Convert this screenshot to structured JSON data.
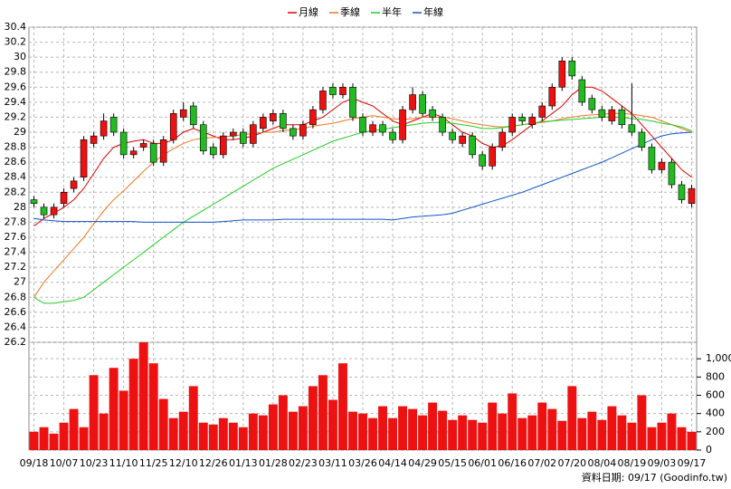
{
  "chart_data": {
    "type": "candlestick",
    "categories": [
      "09/18",
      null,
      null,
      "10/07",
      null,
      null,
      "10/23",
      null,
      null,
      "11/10",
      null,
      null,
      "11/25",
      null,
      null,
      "12/10",
      null,
      null,
      "12/26",
      null,
      null,
      "01/13",
      null,
      null,
      "01/28",
      null,
      null,
      "02/23",
      null,
      null,
      "03/11",
      null,
      null,
      "03/26",
      null,
      null,
      "04/14",
      null,
      null,
      "04/29",
      null,
      null,
      "05/15",
      null,
      null,
      "06/01",
      null,
      null,
      "06/16",
      null,
      null,
      "07/02",
      null,
      null,
      "07/20",
      null,
      null,
      "08/04",
      null,
      null,
      "08/19",
      null,
      null,
      "09/03",
      null,
      null,
      "09/17"
    ],
    "open": [
      28.1,
      28.0,
      27.9,
      28.05,
      28.25,
      28.4,
      28.85,
      28.95,
      29.2,
      29.0,
      28.7,
      28.8,
      28.85,
      28.6,
      28.9,
      29.2,
      29.35,
      29.1,
      28.8,
      28.7,
      28.95,
      29.0,
      28.85,
      29.05,
      29.15,
      29.25,
      29.05,
      28.95,
      29.1,
      29.3,
      29.6,
      29.5,
      29.6,
      29.2,
      29.0,
      29.1,
      29.0,
      28.9,
      29.3,
      29.5,
      29.3,
      29.2,
      29.0,
      28.85,
      28.95,
      28.7,
      28.55,
      28.8,
      29.0,
      29.2,
      29.1,
      29.2,
      29.35,
      29.6,
      29.95,
      29.7,
      29.45,
      29.3,
      29.15,
      29.3,
      29.1,
      29.0,
      28.8,
      28.5,
      28.6,
      28.3,
      28.05
    ],
    "high": [
      28.15,
      28.05,
      28.05,
      28.25,
      28.4,
      28.95,
      29.0,
      29.25,
      29.25,
      29.05,
      28.8,
      28.9,
      28.9,
      28.95,
      29.3,
      29.4,
      29.4,
      29.15,
      28.85,
      29.0,
      29.05,
      29.05,
      29.15,
      29.25,
      29.3,
      29.3,
      29.1,
      29.15,
      29.35,
      29.6,
      29.65,
      29.65,
      29.65,
      29.25,
      29.15,
      29.15,
      29.05,
      29.35,
      29.6,
      29.55,
      29.35,
      29.25,
      29.05,
      29.0,
      29.0,
      28.75,
      28.85,
      29.05,
      29.25,
      29.25,
      29.25,
      29.4,
      29.65,
      30.0,
      30.0,
      29.75,
      29.5,
      29.35,
      29.35,
      29.35,
      29.65,
      29.05,
      28.85,
      28.65,
      28.65,
      28.35,
      28.3
    ],
    "low": [
      28.0,
      27.85,
      27.85,
      28.0,
      28.2,
      28.35,
      28.8,
      28.9,
      28.95,
      28.65,
      28.65,
      28.75,
      28.55,
      28.55,
      28.85,
      29.15,
      29.05,
      28.7,
      28.65,
      28.65,
      28.9,
      28.8,
      28.8,
      29.0,
      29.1,
      29.0,
      28.9,
      28.9,
      29.05,
      29.25,
      29.45,
      29.45,
      29.15,
      28.95,
      28.95,
      28.95,
      28.85,
      28.85,
      29.25,
      29.2,
      29.15,
      28.95,
      28.85,
      28.8,
      28.65,
      28.5,
      28.5,
      28.75,
      28.95,
      29.1,
      29.05,
      29.15,
      29.3,
      29.55,
      29.7,
      29.35,
      29.25,
      29.15,
      29.1,
      29.05,
      28.95,
      28.75,
      28.45,
      28.45,
      28.25,
      28.05,
      28.0
    ],
    "close": [
      28.05,
      27.9,
      28.0,
      28.2,
      28.35,
      28.9,
      28.95,
      29.15,
      29.0,
      28.7,
      28.75,
      28.85,
      28.6,
      28.9,
      29.25,
      29.3,
      29.1,
      28.75,
      28.7,
      28.95,
      29.0,
      28.85,
      29.1,
      29.2,
      29.25,
      29.05,
      28.95,
      29.1,
      29.3,
      29.55,
      29.5,
      29.6,
      29.2,
      29.0,
      29.1,
      29.0,
      28.9,
      29.3,
      29.5,
      29.25,
      29.2,
      29.0,
      28.9,
      28.95,
      28.7,
      28.55,
      28.8,
      29.0,
      29.2,
      29.15,
      29.2,
      29.35,
      29.6,
      29.95,
      29.75,
      29.4,
      29.3,
      29.2,
      29.3,
      29.1,
      29.0,
      28.8,
      28.5,
      28.6,
      28.3,
      28.1,
      28.25
    ],
    "up_color": "#ee1111",
    "down_color": "#22bb22",
    "ylim": [
      26.2,
      30.4
    ],
    "yticks": [
      26.2,
      26.4,
      26.6,
      26.8,
      27,
      27.2,
      27.4,
      27.6,
      27.8,
      28,
      28.2,
      28.4,
      28.6,
      28.8,
      29,
      29.2,
      29.4,
      29.6,
      29.8,
      30,
      30.2,
      30.4
    ],
    "grid": true,
    "moving_averages": [
      {
        "name": "月線",
        "color": "#dd0000",
        "values": [
          27.75,
          27.85,
          27.92,
          28.0,
          28.1,
          28.25,
          28.45,
          28.65,
          28.8,
          28.85,
          28.88,
          28.9,
          28.85,
          28.85,
          28.9,
          29.0,
          29.05,
          29.0,
          28.95,
          28.9,
          28.9,
          28.92,
          28.95,
          29.0,
          29.05,
          29.1,
          29.1,
          29.1,
          29.15,
          29.2,
          29.3,
          29.4,
          29.45,
          29.4,
          29.35,
          29.25,
          29.15,
          29.1,
          29.15,
          29.2,
          29.25,
          29.2,
          29.1,
          29.0,
          28.95,
          28.85,
          28.8,
          28.82,
          28.9,
          29.0,
          29.1,
          29.15,
          29.25,
          29.35,
          29.5,
          29.6,
          29.6,
          29.55,
          29.45,
          29.35,
          29.25,
          29.1,
          28.95,
          28.8,
          28.65,
          28.5,
          28.4
        ]
      },
      {
        "name": "季線",
        "color": "#ee7722",
        "values": [
          26.8,
          27.0,
          27.15,
          27.3,
          27.45,
          27.6,
          27.78,
          27.95,
          28.1,
          28.22,
          28.35,
          28.48,
          28.6,
          28.7,
          28.78,
          28.85,
          28.9,
          28.92,
          28.93,
          28.94,
          28.95,
          28.97,
          28.98,
          29.0,
          29.0,
          29.02,
          29.03,
          29.05,
          29.08,
          29.1,
          29.12,
          29.15,
          29.18,
          29.2,
          29.22,
          29.2,
          29.18,
          29.17,
          29.18,
          29.2,
          29.2,
          29.2,
          29.18,
          29.15,
          29.12,
          29.1,
          29.08,
          29.07,
          29.08,
          29.1,
          29.12,
          29.13,
          29.15,
          29.18,
          29.2,
          29.22,
          29.23,
          29.24,
          29.25,
          29.25,
          29.24,
          29.22,
          29.2,
          29.15,
          29.1,
          29.05,
          29.0
        ]
      },
      {
        "name": "半年",
        "color": "#22cc22",
        "values": [
          26.8,
          26.72,
          26.72,
          26.74,
          26.76,
          26.8,
          26.9,
          27.0,
          27.1,
          27.2,
          27.3,
          27.4,
          27.5,
          27.6,
          27.7,
          27.8,
          27.88,
          27.96,
          28.04,
          28.12,
          28.2,
          28.28,
          28.36,
          28.44,
          28.52,
          28.58,
          28.64,
          28.7,
          28.76,
          28.82,
          28.88,
          28.92,
          28.96,
          29.0,
          29.02,
          29.04,
          29.06,
          29.08,
          29.1,
          29.12,
          29.13,
          29.13,
          29.12,
          29.1,
          29.08,
          29.05,
          29.05,
          29.06,
          29.08,
          29.1,
          29.12,
          29.14,
          29.15,
          29.16,
          29.17,
          29.18,
          29.19,
          29.2,
          29.2,
          29.2,
          29.18,
          29.17,
          29.15,
          29.12,
          29.1,
          29.07,
          29.02
        ]
      },
      {
        "name": "年線",
        "color": "#1155cc",
        "values": [
          27.85,
          27.83,
          27.82,
          27.81,
          27.81,
          27.81,
          27.81,
          27.81,
          27.81,
          27.81,
          27.81,
          27.8,
          27.8,
          27.8,
          27.8,
          27.8,
          27.8,
          27.8,
          27.8,
          27.81,
          27.82,
          27.83,
          27.83,
          27.83,
          27.83,
          27.84,
          27.84,
          27.84,
          27.84,
          27.84,
          27.84,
          27.84,
          27.84,
          27.84,
          27.84,
          27.84,
          27.83,
          27.85,
          27.87,
          27.88,
          27.89,
          27.9,
          27.92,
          27.96,
          28.0,
          28.04,
          28.08,
          28.12,
          28.16,
          28.2,
          28.25,
          28.3,
          28.35,
          28.4,
          28.45,
          28.5,
          28.55,
          28.6,
          28.66,
          28.72,
          28.78,
          28.84,
          28.9,
          28.95,
          28.98,
          28.99,
          29.0
        ]
      }
    ],
    "volume": {
      "color": "#ee1111",
      "values": [
        200,
        250,
        180,
        300,
        450,
        250,
        820,
        400,
        900,
        650,
        1000,
        1180,
        950,
        560,
        350,
        420,
        700,
        300,
        280,
        350,
        300,
        250,
        400,
        380,
        500,
        600,
        420,
        480,
        700,
        820,
        550,
        950,
        420,
        400,
        350,
        480,
        350,
        480,
        450,
        380,
        520,
        430,
        330,
        380,
        330,
        300,
        520,
        400,
        620,
        350,
        380,
        520,
        450,
        320,
        700,
        350,
        420,
        330,
        480,
        380,
        300,
        600,
        250,
        300,
        400,
        250,
        200
      ],
      "ylim": [
        0,
        1180
      ],
      "yticks": [
        0,
        200,
        400,
        600,
        800,
        {
          "value": 1000,
          "label": "1,000"
        }
      ]
    },
    "footer": "資料日期: 09/17 (Goodinfo.tw)"
  }
}
